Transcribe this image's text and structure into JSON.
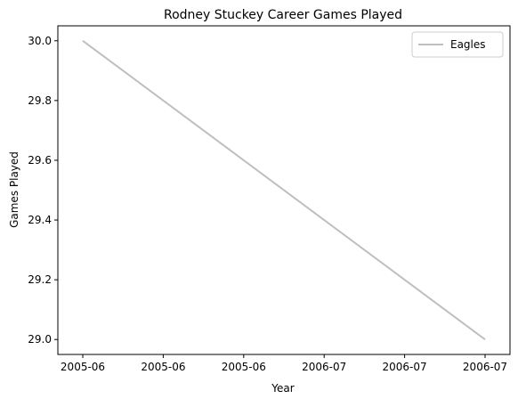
{
  "chart_data": {
    "type": "line",
    "title": "Rodney Stuckey Career Games Played",
    "xlabel": "Year",
    "ylabel": "Games Played",
    "x_ticks": [
      "2005-06",
      "2005-06",
      "2005-06",
      "2006-07",
      "2006-07",
      "2006-07"
    ],
    "y_ticks": [
      "29.0",
      "29.2",
      "29.4",
      "29.6",
      "29.8",
      "30.0"
    ],
    "x": [
      "2005-06",
      "2006-07"
    ],
    "ylim": [
      28.95,
      30.05
    ],
    "series": [
      {
        "name": "Eagles",
        "color": "#bfbfbf",
        "values": [
          30,
          29
        ]
      }
    ],
    "legend_position": "top-right",
    "grid": false
  }
}
